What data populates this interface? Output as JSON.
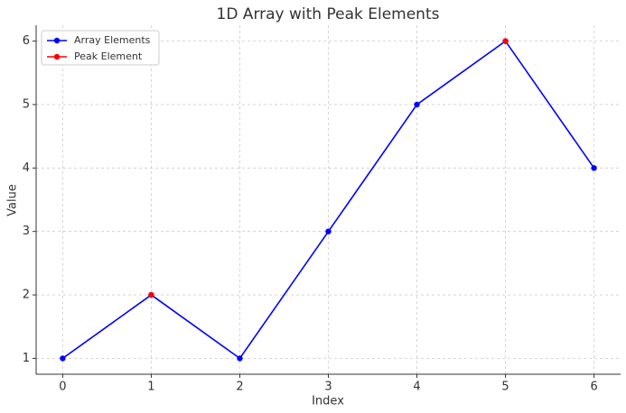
{
  "chart_data": {
    "type": "line",
    "title": "1D Array with Peak Elements",
    "x_label": "Index",
    "y_label": "Value",
    "x": [
      0,
      1,
      2,
      3,
      4,
      5,
      6
    ],
    "series": [
      {
        "name": "Array Elements",
        "color": "#0000ff",
        "values": [
          1,
          2,
          1,
          3,
          5,
          6,
          4
        ]
      },
      {
        "name": "Peak Element",
        "color": "#ff0000",
        "values": [
          null,
          2,
          null,
          null,
          null,
          6,
          null
        ]
      }
    ],
    "xlim": [
      -0.3,
      6.3
    ],
    "ylim": [
      0.75,
      6.25
    ],
    "xticks": [
      0,
      1,
      2,
      3,
      4,
      5,
      6
    ],
    "yticks": [
      1,
      2,
      3,
      4,
      5,
      6
    ],
    "grid": true,
    "legend": "upper left"
  }
}
